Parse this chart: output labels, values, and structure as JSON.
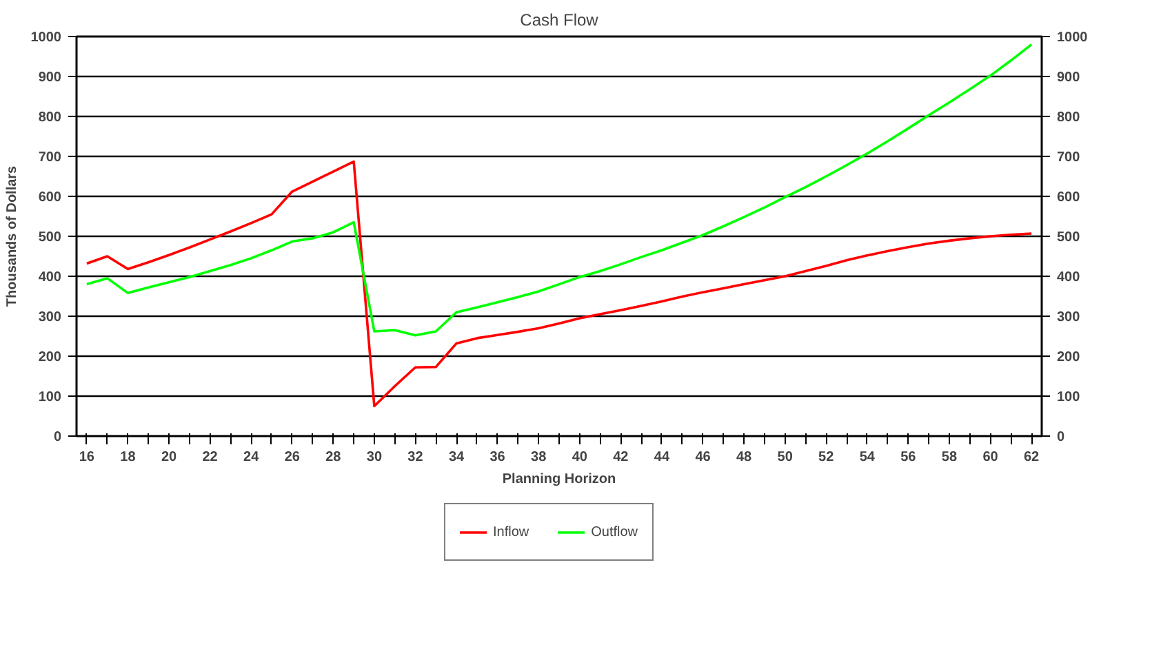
{
  "chart_data": {
    "type": "line",
    "title": "Cash Flow",
    "xlabel": "Planning Horizon",
    "ylabel": "Thousands of Dollars",
    "categories": [
      "16",
      null,
      "18",
      null,
      "20",
      null,
      "22",
      null,
      "24",
      null,
      "26",
      null,
      "28",
      null,
      "30",
      null,
      "32",
      null,
      "34",
      null,
      "36",
      null,
      "38",
      null,
      "40",
      null,
      "42",
      null,
      "44",
      null,
      "46",
      null,
      "48",
      null,
      "50",
      null,
      "52",
      null,
      "54",
      null,
      "56",
      null,
      "58",
      null,
      "60",
      null,
      "62"
    ],
    "series": [
      {
        "name": "Inflow",
        "color": "#ff0000",
        "values": [
          432,
          450,
          418,
          435,
          453,
          472,
          492,
          512,
          533,
          555,
          612,
          637,
          662,
          687,
          75,
          125,
          172,
          173,
          232,
          245,
          253,
          261,
          270,
          282,
          295,
          305,
          315,
          326,
          337,
          349,
          360,
          370,
          380,
          390,
          400,
          413,
          426,
          440,
          452,
          463,
          473,
          482,
          489,
          495,
          500,
          504,
          507
        ]
      },
      {
        "name": "Outflow",
        "color": "#00ff00",
        "values": [
          380,
          395,
          358,
          372,
          385,
          398,
          413,
          428,
          445,
          465,
          487,
          495,
          510,
          535,
          262,
          265,
          252,
          262,
          310,
          322,
          335,
          348,
          362,
          380,
          398,
          413,
          430,
          448,
          465,
          484,
          503,
          525,
          548,
          572,
          598,
          623,
          650,
          678,
          707,
          738,
          770,
          803,
          835,
          868,
          902,
          940,
          980
        ]
      }
    ],
    "ylim": [
      0,
      1000
    ],
    "yticks": [
      0,
      100,
      200,
      300,
      400,
      500,
      600,
      700,
      800,
      900,
      1000
    ],
    "y2lim": [
      0,
      1000
    ],
    "y2ticks": [
      0,
      100,
      200,
      300,
      400,
      500,
      600,
      700,
      800,
      900,
      1000
    ],
    "grid": "y",
    "legend": "bottom",
    "marker": "none",
    "line_style": "solid"
  }
}
